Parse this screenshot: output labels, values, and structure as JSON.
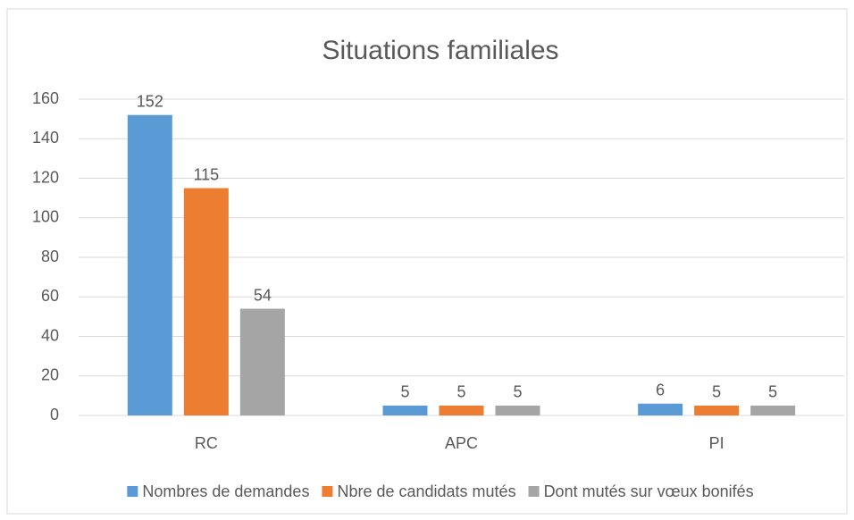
{
  "chart_data": {
    "type": "bar",
    "title": "Situations familiales",
    "categories": [
      "RC",
      "APC",
      "PI"
    ],
    "series": [
      {
        "name": "Nombres de demandes",
        "color": "#5b9bd5",
        "values": [
          152,
          5,
          6
        ]
      },
      {
        "name": "Nbre de candidats mutés",
        "color": "#ed7d31",
        "values": [
          115,
          5,
          5
        ]
      },
      {
        "name": "Dont mutés sur vœux bonifés",
        "color": "#a5a5a5",
        "values": [
          54,
          5,
          5
        ]
      }
    ],
    "ylim": [
      0,
      160
    ],
    "yticks": [
      0,
      20,
      40,
      60,
      80,
      100,
      120,
      140,
      160
    ],
    "grid": true,
    "legend": "bottom"
  }
}
